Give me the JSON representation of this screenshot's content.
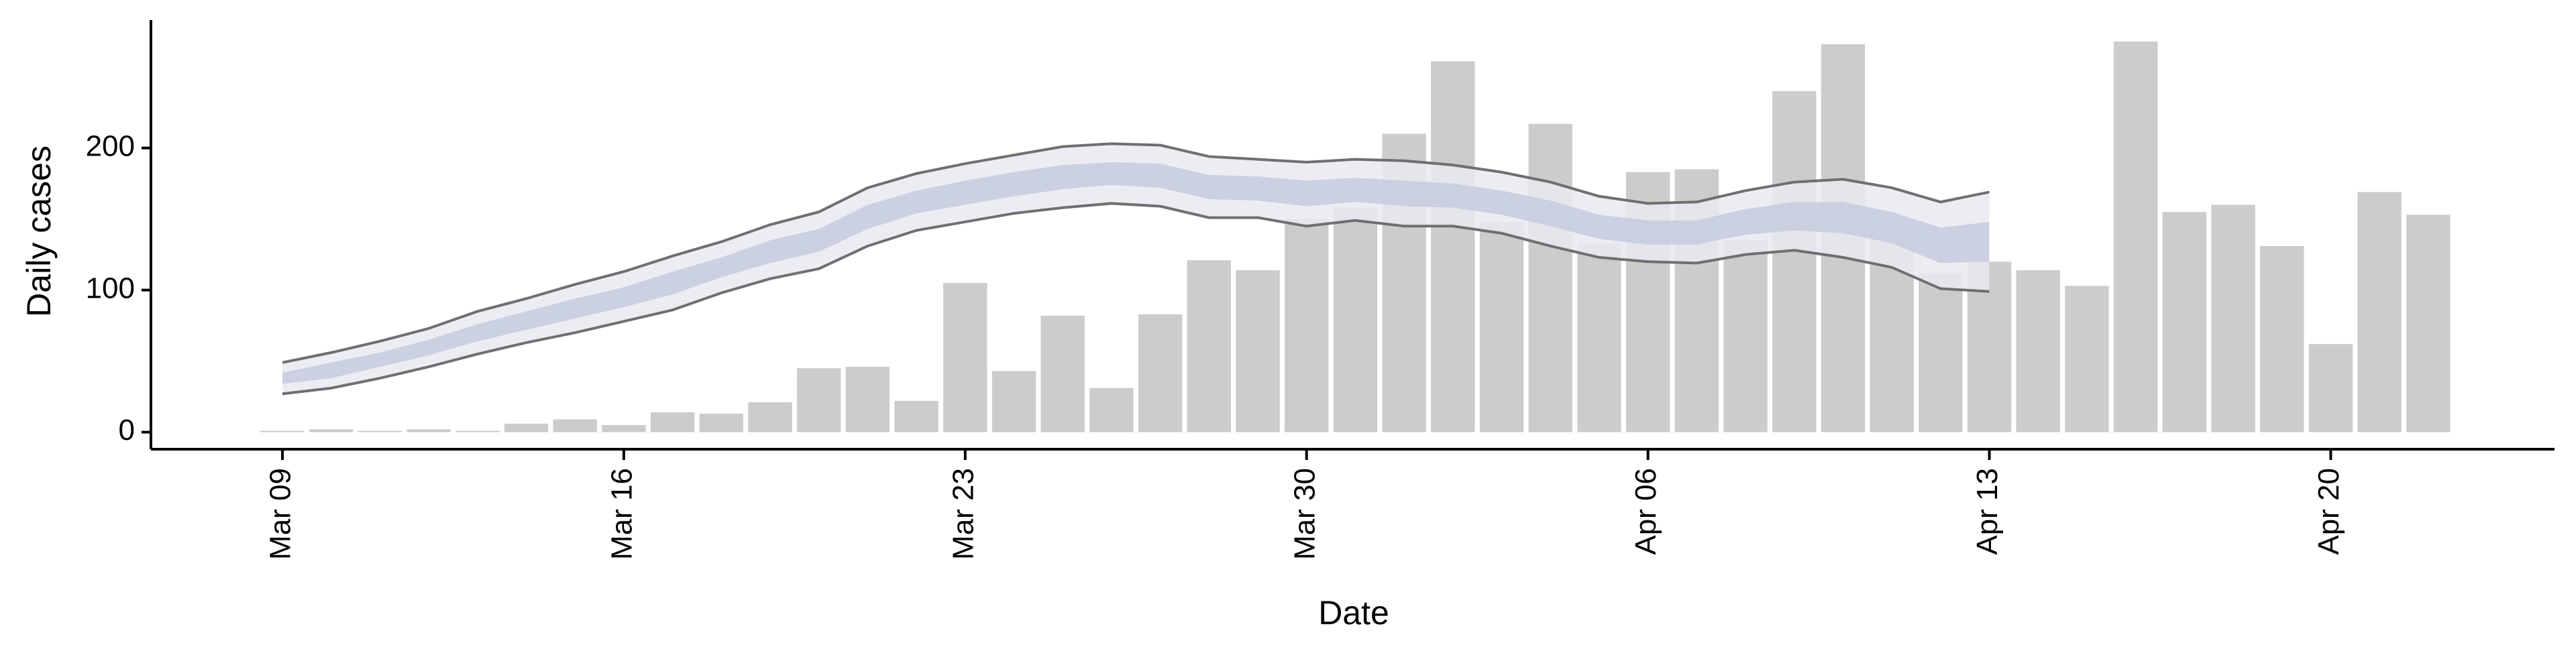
{
  "chart_data": {
    "type": "bar",
    "y_label": "Daily cases",
    "x_label": "Date",
    "categories": [
      "Mar 09",
      null,
      null,
      null,
      null,
      null,
      null,
      "Mar 16",
      null,
      null,
      null,
      null,
      null,
      null,
      "Mar 23",
      null,
      null,
      null,
      null,
      null,
      null,
      "Mar 30",
      null,
      null,
      null,
      null,
      null,
      null,
      "Apr 06",
      null,
      null,
      null,
      null,
      null,
      null,
      "Apr 13",
      null,
      null,
      null,
      null,
      null,
      null,
      "Apr 20",
      null,
      null
    ],
    "values": [
      1,
      2,
      1,
      2,
      1,
      6,
      9,
      5,
      14,
      13,
      21,
      45,
      46,
      22,
      105,
      43,
      82,
      31,
      83,
      121,
      114,
      150,
      158,
      210,
      261,
      148,
      217,
      133,
      183,
      185,
      135,
      240,
      273,
      142,
      112,
      120,
      114,
      103,
      275,
      155,
      160,
      131,
      62,
      169,
      153
    ],
    "color": "#cccccc",
    "bands": [
      {
        "color": "#e9eaf1",
        "line_color": "#6f6f6f",
        "lower": [
          27,
          31,
          38,
          46,
          55,
          63,
          70,
          78,
          86,
          98,
          108,
          115,
          131,
          142,
          148,
          154,
          158,
          161,
          159,
          151,
          151,
          145,
          149,
          145,
          145,
          140,
          131,
          123,
          120,
          119,
          125,
          128,
          123,
          116,
          101,
          99
        ],
        "upper": [
          49,
          56,
          64,
          73,
          85,
          94,
          104,
          113,
          124,
          134,
          146,
          155,
          172,
          182,
          189,
          195,
          201,
          203,
          202,
          194,
          192,
          190,
          192,
          191,
          188,
          183,
          176,
          166,
          161,
          162,
          170,
          176,
          178,
          172,
          162,
          169
        ]
      },
      {
        "color": "#c6cbde",
        "lower": [
          34,
          38,
          46,
          54,
          64,
          72,
          80,
          88,
          97,
          109,
          119,
          127,
          143,
          154,
          160,
          166,
          171,
          174,
          172,
          164,
          163,
          159,
          162,
          159,
          158,
          153,
          145,
          136,
          132,
          132,
          139,
          142,
          140,
          133,
          119,
          120
        ],
        "upper": [
          42,
          49,
          56,
          65,
          76,
          85,
          94,
          102,
          113,
          123,
          135,
          143,
          160,
          170,
          177,
          183,
          188,
          190,
          189,
          181,
          180,
          177,
          179,
          177,
          175,
          170,
          163,
          153,
          149,
          149,
          157,
          162,
          162,
          155,
          144,
          148
        ]
      }
    ],
    "ylim": [
      -12,
      290
    ],
    "yticks": [
      0,
      100,
      200
    ]
  }
}
